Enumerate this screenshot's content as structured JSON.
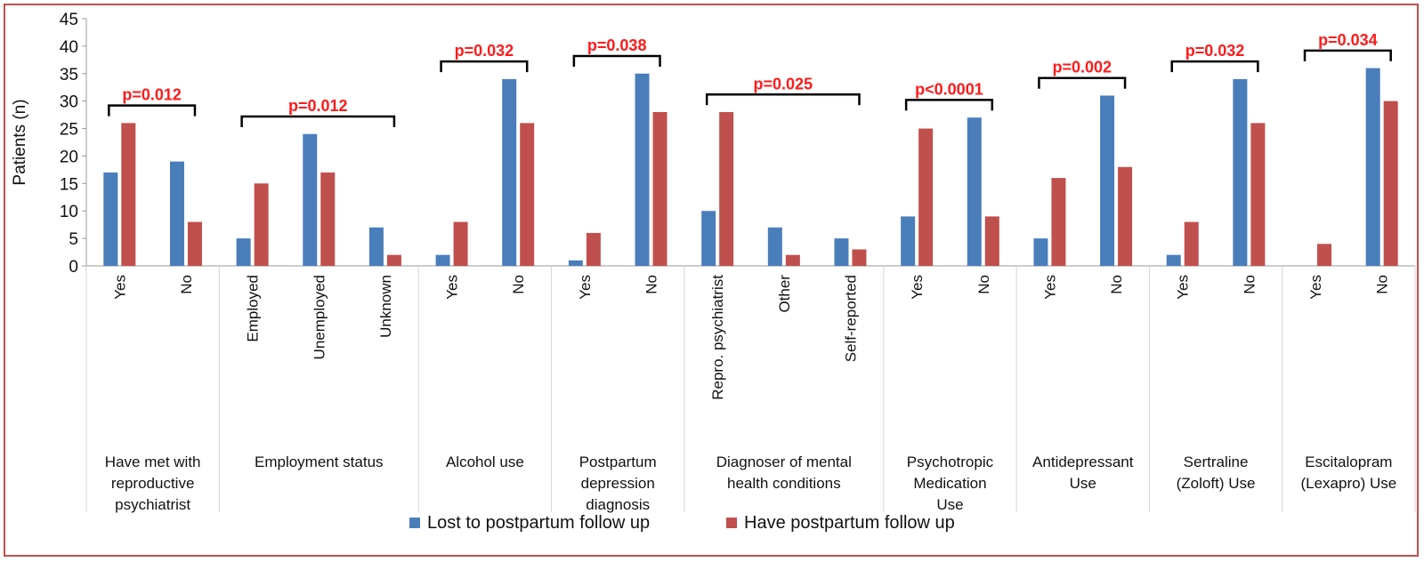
{
  "chart_data": {
    "type": "bar",
    "title": "",
    "ylabel": "Patients (n)",
    "ylim": [
      0,
      45
    ],
    "yticks": [
      0,
      5,
      10,
      15,
      20,
      25,
      30,
      35,
      40,
      45
    ],
    "series": [
      {
        "name": "Lost to postpartum follow up",
        "color": "#4a7ebb"
      },
      {
        "name": "Have postpartum follow up",
        "color": "#c0504d"
      }
    ],
    "groups": [
      {
        "label": "Have met with reproductive psychiatrist",
        "label_lines": [
          "Have met with",
          "reproductive",
          "psychiatrist"
        ],
        "pvalue": "p=0.012",
        "categories": [
          {
            "label": "Yes",
            "values": [
              17,
              26
            ]
          },
          {
            "label": "No",
            "values": [
              19,
              8
            ]
          }
        ]
      },
      {
        "label": "Employment status",
        "label_lines": [
          "Employment status"
        ],
        "pvalue": "p=0.012",
        "categories": [
          {
            "label": "Employed",
            "values": [
              5,
              15
            ]
          },
          {
            "label": "Unemployed",
            "values": [
              24,
              17
            ]
          },
          {
            "label": "Unknown",
            "values": [
              7,
              2
            ]
          }
        ]
      },
      {
        "label": "Alcohol use",
        "label_lines": [
          "Alcohol use"
        ],
        "pvalue": "p=0.032",
        "categories": [
          {
            "label": "Yes",
            "values": [
              2,
              8
            ]
          },
          {
            "label": "No",
            "values": [
              34,
              26
            ]
          }
        ]
      },
      {
        "label": "Postpartum depression diagnosis",
        "label_lines": [
          "Postpartum",
          "depression",
          "diagnosis"
        ],
        "pvalue": "p=0.038",
        "categories": [
          {
            "label": "Yes",
            "values": [
              1,
              6
            ]
          },
          {
            "label": "No",
            "values": [
              35,
              28
            ]
          }
        ]
      },
      {
        "label": "Diagnoser of mental health conditions",
        "label_lines": [
          "Diagnoser of mental",
          "health conditions"
        ],
        "pvalue": "p=0.025",
        "categories": [
          {
            "label": "Repro. psychiatrist",
            "values": [
              10,
              28
            ]
          },
          {
            "label": "Other",
            "values": [
              7,
              2
            ]
          },
          {
            "label": "Self-reported",
            "values": [
              5,
              3
            ]
          }
        ]
      },
      {
        "label": "Psychotropic Medication Use",
        "label_lines": [
          "Psychotropic",
          "Medication",
          "Use"
        ],
        "pvalue": "p<0.0001",
        "categories": [
          {
            "label": "Yes",
            "values": [
              9,
              25
            ]
          },
          {
            "label": "No",
            "values": [
              27,
              9
            ]
          }
        ]
      },
      {
        "label": "Antidepressant Use",
        "label_lines": [
          "Antidepressant",
          "Use"
        ],
        "pvalue": "p=0.002",
        "categories": [
          {
            "label": "Yes",
            "values": [
              5,
              16
            ]
          },
          {
            "label": "No",
            "values": [
              31,
              18
            ]
          }
        ]
      },
      {
        "label": "Sertraline (Zoloft) Use",
        "label_lines": [
          "Sertraline",
          "(Zoloft) Use"
        ],
        "pvalue": "p=0.032",
        "categories": [
          {
            "label": "Yes",
            "values": [
              2,
              8
            ]
          },
          {
            "label": "No",
            "values": [
              34,
              26
            ]
          }
        ]
      },
      {
        "label": "Escitalopram (Lexapro) Use",
        "label_lines": [
          "Escitalopram",
          "(Lexapro) Use"
        ],
        "pvalue": "p=0.034",
        "categories": [
          {
            "label": "Yes",
            "values": [
              0,
              4
            ]
          },
          {
            "label": "No",
            "values": [
              36,
              30
            ]
          }
        ]
      }
    ],
    "legend_position": "bottom",
    "grid": false
  }
}
